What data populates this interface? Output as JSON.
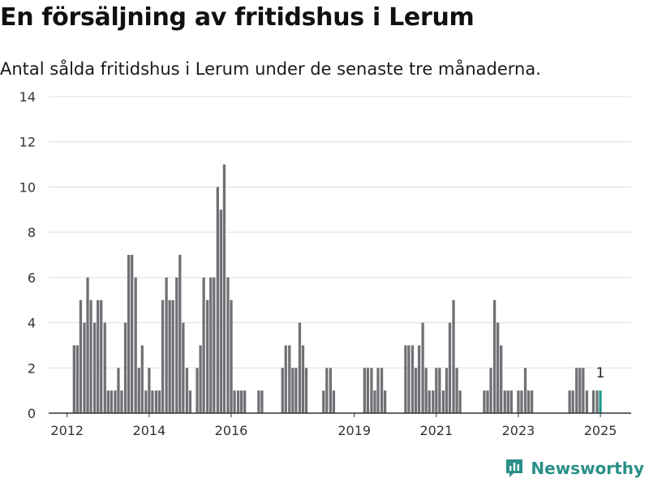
{
  "title": "En försäljning av fritidshus i Lerum",
  "subtitle": "Antal sålda fritidshus i Lerum under de senaste tre månaderna.",
  "brand": {
    "name": "Newsworthy",
    "icon": "newsworthy-logo-icon"
  },
  "colors": {
    "bar": "#717075",
    "highlight": "#1f9e8f",
    "grid": "#dddddd",
    "axis": "#333333",
    "brand": "#2a9088"
  },
  "chart_data": {
    "type": "bar",
    "xlabel": "",
    "ylabel": "",
    "ylim": [
      0,
      14
    ],
    "yticks": [
      0,
      2,
      4,
      6,
      8,
      10,
      12,
      14
    ],
    "xlim": [
      2011.55,
      2025.75
    ],
    "xticks": [
      "2012",
      "2014",
      "2016",
      "2019",
      "2021",
      "2023",
      "2025"
    ],
    "grid": true,
    "annotation": {
      "x": 2025.0,
      "label": "1"
    },
    "bar_width_years": 0.065,
    "series": [
      {
        "values": [
          [
            2012.17,
            3
          ],
          [
            2012.25,
            3
          ],
          [
            2012.33,
            5
          ],
          [
            2012.42,
            4
          ],
          [
            2012.5,
            6
          ],
          [
            2012.58,
            5
          ],
          [
            2012.67,
            4
          ],
          [
            2012.75,
            5
          ],
          [
            2012.83,
            5
          ],
          [
            2012.92,
            4
          ],
          [
            2013.0,
            1
          ],
          [
            2013.08,
            1
          ],
          [
            2013.17,
            1
          ],
          [
            2013.25,
            2
          ],
          [
            2013.33,
            1
          ],
          [
            2013.42,
            4
          ],
          [
            2013.5,
            7
          ],
          [
            2013.58,
            7
          ],
          [
            2013.67,
            6
          ],
          [
            2013.75,
            2
          ],
          [
            2013.83,
            3
          ],
          [
            2013.92,
            1
          ],
          [
            2014.0,
            2
          ],
          [
            2014.08,
            1
          ],
          [
            2014.17,
            1
          ],
          [
            2014.25,
            1
          ],
          [
            2014.33,
            5
          ],
          [
            2014.42,
            6
          ],
          [
            2014.5,
            5
          ],
          [
            2014.58,
            5
          ],
          [
            2014.67,
            6
          ],
          [
            2014.75,
            7
          ],
          [
            2014.83,
            4
          ],
          [
            2014.92,
            2
          ],
          [
            2015.0,
            1
          ],
          [
            2015.17,
            2
          ],
          [
            2015.25,
            3
          ],
          [
            2015.33,
            6
          ],
          [
            2015.42,
            5
          ],
          [
            2015.5,
            6
          ],
          [
            2015.58,
            6
          ],
          [
            2015.67,
            10
          ],
          [
            2015.75,
            9
          ],
          [
            2015.83,
            11
          ],
          [
            2015.92,
            6
          ],
          [
            2016.0,
            5
          ],
          [
            2016.08,
            1
          ],
          [
            2016.17,
            1
          ],
          [
            2016.25,
            1
          ],
          [
            2016.33,
            1
          ],
          [
            2016.67,
            1
          ],
          [
            2016.75,
            1
          ],
          [
            2017.25,
            2
          ],
          [
            2017.33,
            3
          ],
          [
            2017.42,
            3
          ],
          [
            2017.5,
            2
          ],
          [
            2017.58,
            2
          ],
          [
            2017.67,
            4
          ],
          [
            2017.75,
            3
          ],
          [
            2017.83,
            2
          ],
          [
            2018.25,
            1
          ],
          [
            2018.33,
            2
          ],
          [
            2018.42,
            2
          ],
          [
            2018.5,
            1
          ],
          [
            2019.25,
            2
          ],
          [
            2019.33,
            2
          ],
          [
            2019.42,
            2
          ],
          [
            2019.5,
            1
          ],
          [
            2019.58,
            2
          ],
          [
            2019.67,
            2
          ],
          [
            2019.75,
            1
          ],
          [
            2020.25,
            3
          ],
          [
            2020.33,
            3
          ],
          [
            2020.42,
            3
          ],
          [
            2020.5,
            2
          ],
          [
            2020.58,
            3
          ],
          [
            2020.67,
            4
          ],
          [
            2020.75,
            2
          ],
          [
            2020.83,
            1
          ],
          [
            2020.92,
            1
          ],
          [
            2021.0,
            2
          ],
          [
            2021.08,
            2
          ],
          [
            2021.17,
            1
          ],
          [
            2021.25,
            2
          ],
          [
            2021.33,
            4
          ],
          [
            2021.42,
            5
          ],
          [
            2021.5,
            2
          ],
          [
            2021.58,
            1
          ],
          [
            2022.17,
            1
          ],
          [
            2022.25,
            1
          ],
          [
            2022.33,
            2
          ],
          [
            2022.42,
            5
          ],
          [
            2022.5,
            4
          ],
          [
            2022.58,
            3
          ],
          [
            2022.67,
            1
          ],
          [
            2022.75,
            1
          ],
          [
            2022.83,
            1
          ],
          [
            2023.0,
            1
          ],
          [
            2023.08,
            1
          ],
          [
            2023.17,
            2
          ],
          [
            2023.25,
            1
          ],
          [
            2023.33,
            1
          ],
          [
            2024.25,
            1
          ],
          [
            2024.33,
            1
          ],
          [
            2024.42,
            2
          ],
          [
            2024.5,
            2
          ],
          [
            2024.58,
            2
          ],
          [
            2024.67,
            1
          ],
          [
            2024.83,
            1
          ],
          [
            2024.92,
            1
          ],
          [
            2025.0,
            1
          ]
        ]
      }
    ]
  }
}
